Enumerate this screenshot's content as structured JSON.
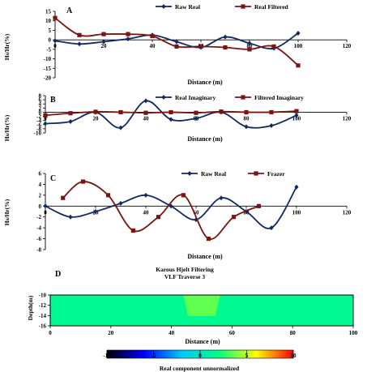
{
  "chart_data": [
    {
      "panel": "A",
      "type": "line",
      "xlabel": "Distance (m)",
      "ylabel": "Hs/Hr(%)",
      "xlim": [
        0,
        120
      ],
      "ylim": [
        -20,
        15
      ],
      "xticks": [
        0,
        20,
        40,
        60,
        80,
        100,
        120
      ],
      "yticks": [
        -20,
        -15,
        -10,
        -5,
        0,
        5,
        10,
        15
      ],
      "legend": "top",
      "series": [
        {
          "name": "Raw Real",
          "color": "#0d2a66",
          "marker": "diamond",
          "x": [
            0,
            10,
            20,
            30,
            40,
            50,
            60,
            70,
            80,
            90,
            100
          ],
          "y": [
            -0.5,
            -2.2,
            -1.0,
            0.5,
            2.5,
            -1.0,
            -4.0,
            1.5,
            -1.8,
            -4.5,
            3.5
          ]
        },
        {
          "name": "Real Filtered",
          "color": "#7a1410",
          "marker": "square",
          "x": [
            0,
            10,
            20,
            30,
            40,
            50,
            60,
            70,
            80,
            90,
            100
          ],
          "y": [
            11.5,
            2.5,
            3.0,
            3.0,
            2.0,
            -3.5,
            -3.5,
            -4.0,
            -5.0,
            -3.5,
            -13.5
          ]
        }
      ]
    },
    {
      "panel": "B",
      "type": "line",
      "xlabel": "Distance (m)",
      "ylabel": "Hs/Hr(%)",
      "xlim": [
        0,
        120
      ],
      "ylim": [
        -10,
        8
      ],
      "xticks": [
        0,
        20,
        40,
        60,
        80,
        100,
        120
      ],
      "yticks": [
        -10,
        -8,
        -6,
        -4,
        -2,
        0,
        2,
        4,
        6,
        8
      ],
      "legend": "top",
      "series": [
        {
          "name": "Real Imaginary",
          "color": "#0d2a66",
          "marker": "diamond",
          "x": [
            0,
            10,
            20,
            30,
            40,
            50,
            60,
            70,
            80,
            90,
            100
          ],
          "y": [
            -5.5,
            -4.5,
            0.0,
            -7.5,
            5.5,
            -3.5,
            -3.0,
            0.0,
            -7.0,
            -6.5,
            -1.5
          ]
        },
        {
          "name": "Filtered Imaginary",
          "color": "#7a1410",
          "marker": "square",
          "x": [
            0,
            10,
            20,
            30,
            40,
            50,
            60,
            70,
            80,
            90,
            100
          ],
          "y": [
            -1.5,
            -0.5,
            0.2,
            0.0,
            -0.3,
            0.0,
            -0.3,
            0.3,
            0.0,
            0.0,
            0.5
          ]
        }
      ]
    },
    {
      "panel": "C",
      "type": "line",
      "xlabel": "Distance (m)",
      "ylabel": "Hs/Hr(%)",
      "xlim": [
        0,
        120
      ],
      "ylim": [
        -8,
        6
      ],
      "xticks": [
        0,
        20,
        40,
        60,
        80,
        100,
        120
      ],
      "yticks": [
        -8,
        -6,
        -4,
        -2,
        0,
        2,
        4,
        6
      ],
      "legend": "top",
      "series": [
        {
          "name": "Raw Real",
          "color": "#0d2a66",
          "marker": "diamond",
          "x": [
            0,
            10,
            20,
            30,
            40,
            50,
            60,
            70,
            80,
            90,
            100
          ],
          "y": [
            0.0,
            -2.0,
            -1.0,
            0.5,
            2.0,
            0.0,
            -2.5,
            1.5,
            -1.0,
            -4.0,
            3.5
          ]
        },
        {
          "name": "Frazer",
          "color": "#7a1410",
          "marker": "square",
          "x": [
            7,
            15,
            25,
            35,
            45,
            55,
            65,
            75,
            85
          ],
          "y": [
            1.5,
            4.5,
            2.0,
            -4.5,
            -2.0,
            2.0,
            -6.0,
            -2.0,
            0.0
          ]
        }
      ]
    },
    {
      "panel": "D",
      "type": "heatmap",
      "title": "Karous Hjelt Filtering",
      "subtitle": "VLF Traverse 3",
      "xlabel": "Distance (m)",
      "ylabel": "Depth(m)",
      "xlim": [
        0,
        100
      ],
      "ylim": [
        -16,
        -10
      ],
      "xticks": [
        0,
        20,
        40,
        60,
        80,
        100
      ],
      "yticks": [
        -10,
        -12,
        -14,
        -16
      ],
      "field_value": 1.5,
      "anomaly": {
        "x_from": 44,
        "x_to": 56,
        "value": 3.5
      },
      "colorbar": {
        "label": "Real component unnormalized",
        "range": [
          -10,
          10
        ],
        "ticks": [
          -10,
          -5,
          0,
          5,
          10
        ],
        "colors": [
          "#000000",
          "#0000ff",
          "#00c8ff",
          "#00ff80",
          "#ffff00",
          "#ff0000"
        ]
      }
    }
  ]
}
